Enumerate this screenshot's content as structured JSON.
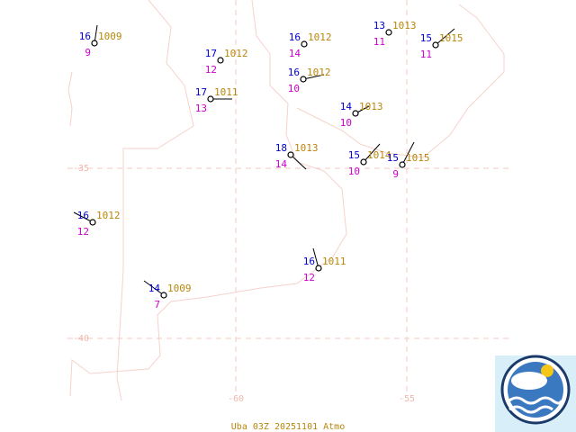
{
  "footer": "Uba 03Z 20251101 Atmo",
  "grid_labels": {
    "lat": [
      "-35",
      "-40"
    ],
    "lon": [
      "-60",
      "-55"
    ]
  },
  "stations": [
    {
      "temperature": 16,
      "pressure": 1009,
      "dewpoint": 9
    },
    {
      "temperature": 17,
      "pressure": 1012,
      "dewpoint": 12
    },
    {
      "temperature": 16,
      "pressure": 1012,
      "dewpoint": 14
    },
    {
      "temperature": 13,
      "pressure": 1013,
      "dewpoint": 11
    },
    {
      "temperature": 15,
      "pressure": 1015,
      "dewpoint": 11
    },
    {
      "temperature": 16,
      "pressure": 1012,
      "dewpoint": 10
    },
    {
      "temperature": 17,
      "pressure": 1011,
      "dewpoint": 13
    },
    {
      "temperature": 14,
      "pressure": 1013,
      "dewpoint": 10
    },
    {
      "temperature": 18,
      "pressure": 1013,
      "dewpoint": 14
    },
    {
      "temperature": 15,
      "pressure": 1014,
      "dewpoint": 10
    },
    {
      "temperature": 15,
      "pressure": 1015,
      "dewpoint": 9
    },
    {
      "temperature": 16,
      "pressure": 1012,
      "dewpoint": 12
    },
    {
      "temperature": 16,
      "pressure": 1011,
      "dewpoint": 12
    },
    {
      "temperature": 14,
      "pressure": 1009,
      "dewpoint": 7
    }
  ]
}
